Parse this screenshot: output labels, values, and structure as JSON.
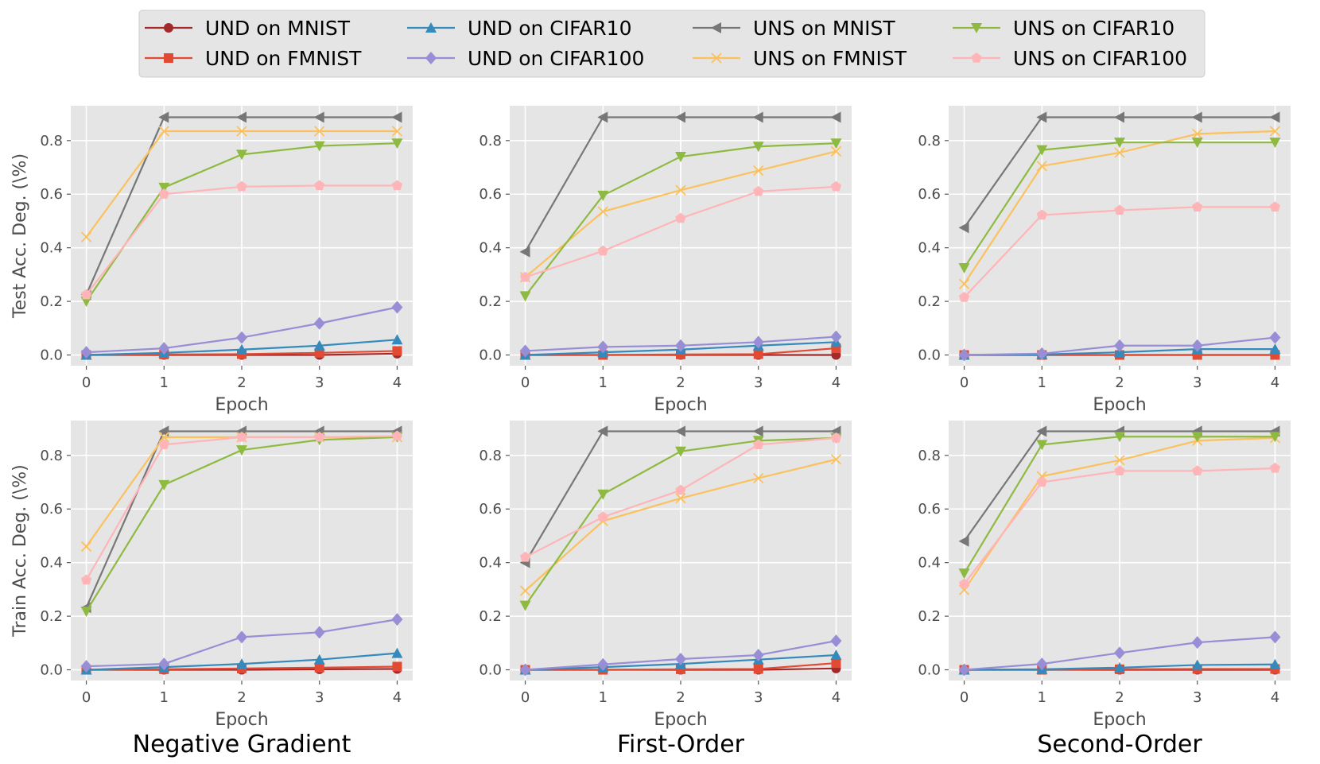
{
  "chart_data": {
    "type": "line",
    "legend": {
      "placement": "top-center",
      "entries": [
        {
          "key": "und_mnist",
          "label": "UND on MNIST"
        },
        {
          "key": "und_fmnist",
          "label": "UND on FMNIST"
        },
        {
          "key": "und_cifar10",
          "label": "UND on CIFAR10"
        },
        {
          "key": "und_cifar100",
          "label": "UND on CIFAR100"
        },
        {
          "key": "uns_mnist",
          "label": "UNS on MNIST"
        },
        {
          "key": "uns_fmnist",
          "label": "UNS on FMNIST"
        },
        {
          "key": "uns_cifar10",
          "label": "UNS on CIFAR10"
        },
        {
          "key": "uns_cifar100",
          "label": "UNS on CIFAR100"
        }
      ]
    },
    "styles": {
      "und_mnist": {
        "color": "#a32a2a",
        "marker": "circle"
      },
      "und_fmnist": {
        "color": "#e24a33",
        "marker": "square"
      },
      "und_cifar10": {
        "color": "#348abd",
        "marker": "triangle-up"
      },
      "und_cifar100": {
        "color": "#988ed5",
        "marker": "diamond"
      },
      "uns_mnist": {
        "color": "#777777",
        "marker": "triangle-left"
      },
      "uns_fmnist": {
        "color": "#fbc15e",
        "marker": "x"
      },
      "uns_cifar10": {
        "color": "#8eba42",
        "marker": "triangle-down"
      },
      "uns_cifar100": {
        "color": "#ffb5b8",
        "marker": "pentagon"
      }
    },
    "x": [
      0,
      1,
      2,
      3,
      4
    ],
    "xticks": [
      "0",
      "1",
      "2",
      "3",
      "4"
    ],
    "yticks": [
      "0.0",
      "0.2",
      "0.4",
      "0.6",
      "0.8"
    ],
    "ylim": [
      -0.04,
      0.93
    ],
    "xlim": [
      -0.2,
      4.2
    ],
    "xlabel": "Epoch",
    "rows": [
      {
        "ylabel": "Test Acc. Deg. (\\%)"
      },
      {
        "ylabel": "Train Acc. Deg. (\\%)"
      }
    ],
    "columns": [
      {
        "title": "Negative Gradient"
      },
      {
        "title": "First-Order"
      },
      {
        "title": "Second-Order"
      }
    ],
    "panels": [
      {
        "row": 0,
        "col": 0,
        "series": {
          "und_mnist": [
            0.0,
            0.0,
            0.0,
            0.0,
            0.005
          ],
          "und_fmnist": [
            0.0,
            0.002,
            0.003,
            0.008,
            0.015
          ],
          "und_cifar10": [
            0.0,
            0.008,
            0.02,
            0.035,
            0.057
          ],
          "und_cifar100": [
            0.01,
            0.025,
            0.065,
            0.118,
            0.178
          ],
          "uns_mnist": [
            0.225,
            0.887,
            0.887,
            0.887,
            0.887
          ],
          "uns_fmnist": [
            0.44,
            0.835,
            0.835,
            0.835,
            0.835
          ],
          "uns_cifar10": [
            0.2,
            0.625,
            0.748,
            0.78,
            0.79
          ],
          "uns_cifar100": [
            0.225,
            0.6,
            0.628,
            0.632,
            0.632
          ]
        }
      },
      {
        "row": 0,
        "col": 1,
        "series": {
          "und_mnist": [
            0.0,
            0.0,
            0.0,
            0.0,
            0.0
          ],
          "und_fmnist": [
            0.0,
            0.0,
            0.002,
            0.003,
            0.025
          ],
          "und_cifar10": [
            0.0,
            0.01,
            0.02,
            0.035,
            0.048
          ],
          "und_cifar100": [
            0.015,
            0.03,
            0.035,
            0.048,
            0.068
          ],
          "uns_mnist": [
            0.385,
            0.887,
            0.887,
            0.887,
            0.887
          ],
          "uns_fmnist": [
            0.29,
            0.535,
            0.615,
            0.688,
            0.76
          ],
          "uns_cifar10": [
            0.22,
            0.595,
            0.74,
            0.778,
            0.79
          ],
          "uns_cifar100": [
            0.29,
            0.388,
            0.51,
            0.61,
            0.628
          ]
        }
      },
      {
        "row": 0,
        "col": 2,
        "series": {
          "und_mnist": [
            0.0,
            0.0,
            0.0,
            0.0,
            0.0
          ],
          "und_fmnist": [
            0.0,
            0.0,
            0.0,
            0.0,
            0.0
          ],
          "und_cifar10": [
            0.0,
            0.002,
            0.01,
            0.022,
            0.022
          ],
          "und_cifar100": [
            0.0,
            0.005,
            0.035,
            0.035,
            0.065
          ],
          "uns_mnist": [
            0.475,
            0.887,
            0.887,
            0.887,
            0.887
          ],
          "uns_fmnist": [
            0.265,
            0.705,
            0.755,
            0.825,
            0.835
          ],
          "uns_cifar10": [
            0.325,
            0.765,
            0.793,
            0.793,
            0.793
          ],
          "uns_cifar100": [
            0.215,
            0.522,
            0.54,
            0.552,
            0.552
          ]
        }
      },
      {
        "row": 1,
        "col": 0,
        "series": {
          "und_mnist": [
            0.0,
            0.0,
            0.0,
            0.002,
            0.003
          ],
          "und_fmnist": [
            0.0,
            0.002,
            0.005,
            0.008,
            0.012
          ],
          "und_cifar10": [
            0.0,
            0.01,
            0.022,
            0.038,
            0.062
          ],
          "und_cifar100": [
            0.013,
            0.022,
            0.122,
            0.14,
            0.188
          ],
          "uns_mnist": [
            0.232,
            0.89,
            0.89,
            0.89,
            0.89
          ],
          "uns_fmnist": [
            0.46,
            0.868,
            0.868,
            0.868,
            0.868
          ],
          "uns_cifar10": [
            0.218,
            0.69,
            0.82,
            0.858,
            0.868
          ],
          "uns_cifar100": [
            0.335,
            0.84,
            0.868,
            0.868,
            0.872
          ]
        }
      },
      {
        "row": 1,
        "col": 1,
        "series": {
          "und_mnist": [
            0.0,
            0.0,
            0.0,
            0.0,
            0.005
          ],
          "und_fmnist": [
            0.0,
            0.0,
            0.002,
            0.003,
            0.025
          ],
          "und_cifar10": [
            0.0,
            0.01,
            0.022,
            0.038,
            0.055
          ],
          "und_cifar100": [
            0.0,
            0.02,
            0.04,
            0.055,
            0.108
          ],
          "uns_mnist": [
            0.4,
            0.89,
            0.89,
            0.89,
            0.89
          ],
          "uns_fmnist": [
            0.295,
            0.555,
            0.64,
            0.715,
            0.785
          ],
          "uns_cifar10": [
            0.24,
            0.655,
            0.815,
            0.855,
            0.865
          ],
          "uns_cifar100": [
            0.42,
            0.57,
            0.67,
            0.84,
            0.865
          ]
        }
      },
      {
        "row": 1,
        "col": 2,
        "series": {
          "und_mnist": [
            0.0,
            0.0,
            0.0,
            0.0,
            0.0
          ],
          "und_fmnist": [
            0.0,
            0.0,
            0.002,
            0.003,
            0.003
          ],
          "und_cifar10": [
            0.0,
            0.002,
            0.008,
            0.018,
            0.02
          ],
          "und_cifar100": [
            0.0,
            0.022,
            0.063,
            0.102,
            0.122
          ],
          "uns_mnist": [
            0.48,
            0.89,
            0.89,
            0.89,
            0.89
          ],
          "uns_fmnist": [
            0.298,
            0.722,
            0.782,
            0.855,
            0.865
          ],
          "uns_cifar10": [
            0.36,
            0.84,
            0.87,
            0.87,
            0.87
          ],
          "uns_cifar100": [
            0.32,
            0.7,
            0.742,
            0.742,
            0.752
          ]
        }
      }
    ]
  }
}
